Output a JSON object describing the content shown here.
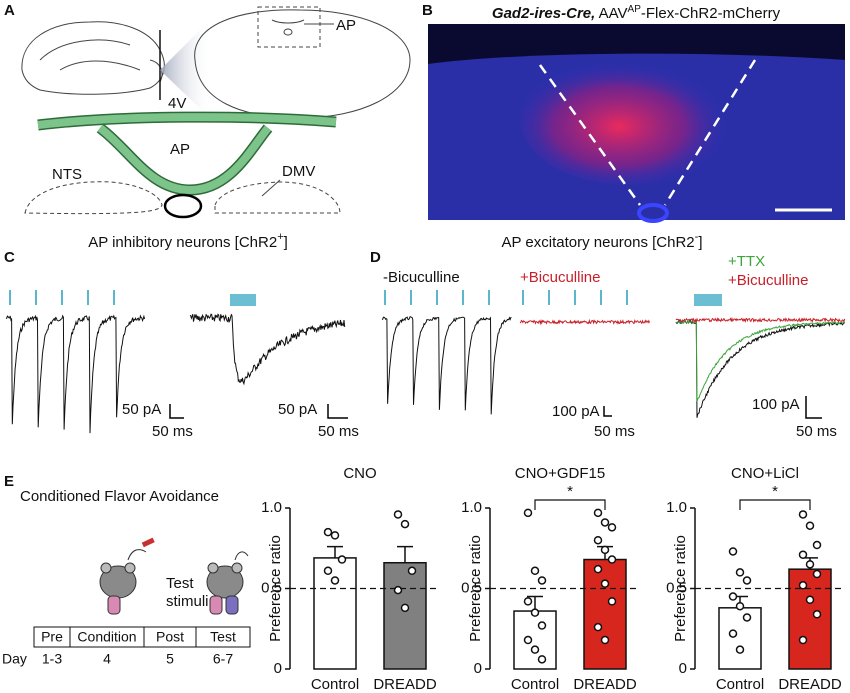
{
  "panel_labels": [
    "A",
    "B",
    "C",
    "D",
    "E"
  ],
  "panel_a": {
    "section_label": "AP",
    "ventricle": "4V",
    "area": "AP",
    "left_nucleus": "NTS",
    "right_nucleus": "DMV"
  },
  "panel_b": {
    "genotype": "Gad2-ires-Cre,",
    "vector": "AAV",
    "vector_sup": "AP",
    "construct": "-Flex-ChR2-mCherry"
  },
  "panel_c": {
    "title": "AP inhibitory neurons [ChR2",
    "title_sup": "+",
    "title_end": "]",
    "scale_left": {
      "current": "50 pA",
      "time": "50 ms"
    },
    "scale_right": {
      "current": "50 pA",
      "time": "50 ms"
    }
  },
  "panel_d": {
    "title": "AP excitatory neurons [ChR2",
    "title_sup": "-",
    "title_end": "]",
    "baseline": "-Bicuculline",
    "drug": "+Bicuculline",
    "ttx": "+TTX",
    "ttx_drug": "+Bicuculline",
    "scale_left": {
      "current": "100 pA",
      "time": "50 ms"
    },
    "scale_right": {
      "current": "100 pA",
      "time": "50 ms"
    }
  },
  "panel_e": {
    "title": "Conditioned Flavor Avoidance",
    "stimulus": [
      "Test",
      "stimuli"
    ],
    "timeline": {
      "row_label": "Day",
      "phases": [
        "Pre",
        "Condition",
        "Post",
        "Test"
      ],
      "days": [
        "1-3",
        "4",
        "5",
        "6-7"
      ]
    }
  },
  "chart_data": [
    {
      "type": "bar",
      "title": "CNO",
      "ylabel": "Preference ratio",
      "categories": [
        "Control",
        "DREADD"
      ],
      "values": [
        0.69,
        0.66
      ],
      "errors": [
        0.07,
        0.1
      ],
      "colors": [
        "#ffffff",
        "#808080"
      ],
      "points": [
        [
          0.85,
          0.83,
          0.68,
          0.61,
          0.55
        ],
        [
          0.96,
          0.9,
          0.61,
          0.49,
          0.38
        ]
      ],
      "reference_line": 0.5,
      "ylim": [
        0,
        1
      ],
      "yticks": [
        0,
        {
          "value": 0.5,
          "label": "0.5"
        },
        {
          "value": 1,
          "label": "1.0"
        }
      ]
    },
    {
      "type": "bar",
      "title": "CNO+GDF15",
      "ylabel": "Preference ratio",
      "categories": [
        "Control",
        "DREADD"
      ],
      "values": [
        0.36,
        0.68
      ],
      "errors": [
        0.09,
        0.08
      ],
      "colors": [
        "#ffffff",
        "#d7261e"
      ],
      "points": [
        [
          0.97,
          0.61,
          0.55,
          0.42,
          0.35,
          0.27,
          0.18,
          0.12,
          0.06
        ],
        [
          0.97,
          0.91,
          0.88,
          0.8,
          0.74,
          0.68,
          0.62,
          0.53,
          0.42,
          0.26,
          0.18
        ]
      ],
      "significance": "*",
      "reference_line": 0.5,
      "ylim": [
        0,
        1
      ],
      "yticks": [
        0,
        {
          "value": 0.5,
          "label": "0.5"
        },
        {
          "value": 1,
          "label": "1.0"
        }
      ]
    },
    {
      "type": "bar",
      "title": "CNO+LiCl",
      "ylabel": "Preference ratio",
      "categories": [
        "Control",
        "DREADD"
      ],
      "values": [
        0.38,
        0.62
      ],
      "errors": [
        0.07,
        0.07
      ],
      "colors": [
        "#ffffff",
        "#d7261e"
      ],
      "points": [
        [
          0.73,
          0.6,
          0.55,
          0.45,
          0.39,
          0.32,
          0.22,
          0.12
        ],
        [
          0.96,
          0.89,
          0.77,
          0.71,
          0.65,
          0.59,
          0.52,
          0.43,
          0.34,
          0.18
        ]
      ],
      "significance": "*",
      "reference_line": 0.5,
      "ylim": [
        0,
        1
      ],
      "yticks": [
        0,
        {
          "value": 0.5,
          "label": "0.5"
        },
        {
          "value": 1,
          "label": "1.0"
        }
      ]
    }
  ]
}
